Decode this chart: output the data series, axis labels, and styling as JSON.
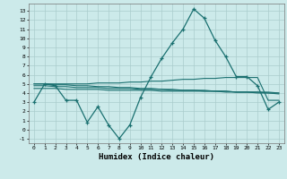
{
  "xlabel": "Humidex (Indice chaleur)",
  "bg_color": "#cceaea",
  "grid_color": "#aacccc",
  "line_color": "#1a7070",
  "x_ticks": [
    0,
    1,
    2,
    3,
    4,
    5,
    6,
    7,
    8,
    9,
    10,
    11,
    12,
    13,
    14,
    15,
    16,
    17,
    18,
    19,
    20,
    21,
    22,
    23
  ],
  "ylim": [
    -1.5,
    13.8
  ],
  "xlim": [
    -0.5,
    23.5
  ],
  "yticks": [
    -1,
    0,
    1,
    2,
    3,
    4,
    5,
    6,
    7,
    8,
    9,
    10,
    11,
    12,
    13
  ],
  "main_x": [
    0,
    1,
    2,
    3,
    4,
    5,
    6,
    7,
    8,
    9,
    10,
    11,
    12,
    13,
    14,
    15,
    16,
    17,
    18,
    19,
    20,
    21,
    22,
    23
  ],
  "main_y": [
    3.0,
    5.0,
    4.8,
    3.2,
    3.2,
    0.8,
    2.5,
    0.5,
    -1.0,
    0.5,
    3.5,
    5.8,
    7.8,
    9.5,
    11.0,
    13.2,
    12.2,
    9.8,
    8.0,
    5.8,
    5.8,
    4.8,
    2.2,
    3.0
  ],
  "smooth_lines": [
    {
      "x": [
        0,
        1,
        2,
        3,
        4,
        5,
        6,
        7,
        8,
        9,
        10,
        11,
        12,
        13,
        14,
        15,
        16,
        17,
        18,
        19,
        20,
        21,
        22,
        23
      ],
      "y": [
        5.0,
        5.0,
        4.9,
        4.9,
        4.8,
        4.8,
        4.7,
        4.7,
        4.6,
        4.6,
        4.5,
        4.5,
        4.4,
        4.4,
        4.3,
        4.3,
        4.3,
        4.2,
        4.2,
        4.1,
        4.1,
        4.0,
        4.0,
        3.9
      ]
    },
    {
      "x": [
        0,
        1,
        2,
        3,
        4,
        5,
        6,
        7,
        8,
        9,
        10,
        11,
        12,
        13,
        14,
        15,
        16,
        17,
        18,
        19,
        20,
        21,
        22,
        23
      ],
      "y": [
        4.8,
        4.8,
        4.7,
        4.7,
        4.6,
        4.6,
        4.6,
        4.5,
        4.5,
        4.5,
        4.4,
        4.4,
        4.4,
        4.3,
        4.3,
        4.3,
        4.2,
        4.2,
        4.2,
        4.1,
        4.1,
        4.1,
        4.0,
        4.0
      ]
    },
    {
      "x": [
        0,
        1,
        2,
        3,
        4,
        5,
        6,
        7,
        8,
        9,
        10,
        11,
        12,
        13,
        14,
        15,
        16,
        17,
        18,
        19,
        20,
        21,
        22,
        23
      ],
      "y": [
        4.5,
        4.5,
        4.5,
        4.4,
        4.4,
        4.4,
        4.4,
        4.3,
        4.3,
        4.3,
        4.3,
        4.3,
        4.2,
        4.2,
        4.2,
        4.2,
        4.2,
        4.2,
        4.1,
        4.1,
        4.1,
        4.1,
        4.1,
        4.0
      ]
    },
    {
      "x": [
        0,
        1,
        2,
        3,
        4,
        5,
        6,
        7,
        8,
        9,
        10,
        11,
        12,
        13,
        14,
        15,
        16,
        17,
        18,
        19,
        20,
        21,
        22,
        23
      ],
      "y": [
        5.0,
        5.0,
        5.0,
        5.0,
        5.0,
        5.0,
        5.1,
        5.1,
        5.1,
        5.2,
        5.2,
        5.3,
        5.3,
        5.4,
        5.5,
        5.5,
        5.6,
        5.6,
        5.7,
        5.7,
        5.7,
        5.7,
        3.2,
        3.2
      ]
    }
  ]
}
